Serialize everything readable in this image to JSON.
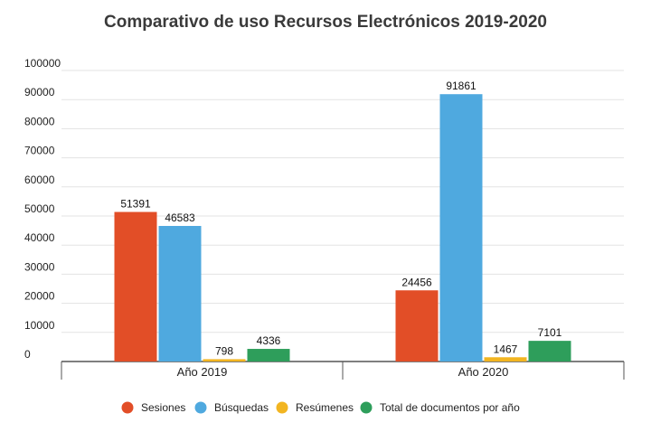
{
  "chart_data": {
    "type": "bar",
    "title": "Comparativo de uso Recursos Electrónicos 2019-2020",
    "categories": [
      "Año 2019",
      "Año 2020"
    ],
    "series": [
      {
        "name": "Sesiones",
        "color": "#e24e27",
        "values": [
          51391,
          24456
        ]
      },
      {
        "name": "Búsquedas",
        "color": "#4fa9df",
        "values": [
          46583,
          91861
        ]
      },
      {
        "name": "Resúmenes",
        "color": "#f2b521",
        "values": [
          798,
          1467
        ]
      },
      {
        "name": "Total de documentos por año",
        "color": "#2e9e5b",
        "values": [
          4336,
          7101
        ]
      }
    ],
    "ylim": [
      0,
      100000
    ],
    "yticks": [
      0,
      10000,
      20000,
      30000,
      40000,
      50000,
      60000,
      70000,
      80000,
      90000,
      100000
    ],
    "grid": true,
    "legend_position": "bottom"
  }
}
